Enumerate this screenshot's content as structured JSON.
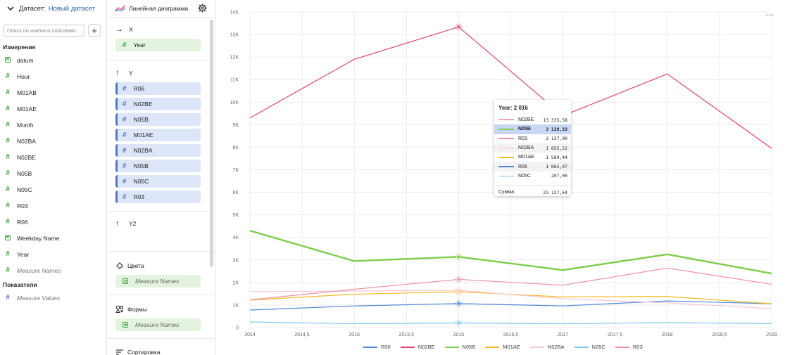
{
  "dataset": {
    "label": "Датасет:",
    "name": "Новый датасет",
    "search_placeholder": "Поиск по имени и описанию",
    "dimensions_title": "Измерения",
    "dimensions": [
      {
        "name": "datum",
        "type": "text-icon"
      },
      {
        "name": "Hour",
        "type": "hash-icon"
      },
      {
        "name": "M01AB",
        "type": "hash-icon"
      },
      {
        "name": "M01AE",
        "type": "hash-icon"
      },
      {
        "name": "Month",
        "type": "hash-icon"
      },
      {
        "name": "N02BA",
        "type": "hash-icon"
      },
      {
        "name": "N02BE",
        "type": "hash-icon"
      },
      {
        "name": "N05B",
        "type": "hash-icon"
      },
      {
        "name": "N05C",
        "type": "hash-icon"
      },
      {
        "name": "R03",
        "type": "hash-icon"
      },
      {
        "name": "R06",
        "type": "hash-icon"
      },
      {
        "name": "Weekday Name",
        "type": "text-icon"
      },
      {
        "name": "Year",
        "type": "hash-icon"
      },
      {
        "name": "Measure Names",
        "type": "hash-icon",
        "italic": true
      }
    ],
    "measures_title": "Показатели",
    "measures": [
      {
        "name": "Measure Values",
        "type": "hash-icon",
        "italic": true
      }
    ]
  },
  "wizard": {
    "viz_name": "Линейная диаграмма",
    "x": {
      "label": "X",
      "fields": [
        "Year"
      ]
    },
    "y": {
      "label": "Y",
      "fields": [
        "R06",
        "N02BE",
        "N05B",
        "M01AE",
        "N02BA",
        "N05B",
        "N05C",
        "R03"
      ]
    },
    "y2": {
      "label": "Y2"
    },
    "colors": {
      "label": "Цвета",
      "field": "Measure Names"
    },
    "shapes": {
      "label": "Формы",
      "field": "Measure Names"
    },
    "sort": {
      "label": "Сортировка"
    }
  },
  "tooltip": {
    "title": "Year: 2 016",
    "rows": [
      {
        "name": "N02BE",
        "value": "13 335,58",
        "color": "#e0446f"
      },
      {
        "name": "N05B",
        "value": "3 138,33",
        "color": "#7ccd48",
        "highlight": true
      },
      {
        "name": "R03",
        "value": "2 137,00",
        "color": "#ee8fa6"
      },
      {
        "name": "N02BA",
        "value": "1 655,22",
        "color": "#f7c6d3",
        "alt": true
      },
      {
        "name": "M01AE",
        "value": "1 589,44",
        "color": "#f6b925"
      },
      {
        "name": "R06",
        "value": "1 065,07",
        "color": "#4f86d6",
        "alt": true
      },
      {
        "name": "N05C",
        "value": "207,00",
        "color": "#7cc5e8"
      }
    ],
    "sum_label": "Сумма",
    "sum_value": "23 127,64"
  },
  "chart_data": {
    "type": "line",
    "x": [
      2014,
      2015,
      2016,
      2017,
      2018,
      2019
    ],
    "x_ticks": [
      "2014",
      "2014,5",
      "2015",
      "2015,5",
      "2016",
      "2016,5",
      "2017",
      "2017,5",
      "2018",
      "2018,5",
      "2019"
    ],
    "y_ticks": [
      "0",
      "1K",
      "2K",
      "3K",
      "4K",
      "5K",
      "6K",
      "7K",
      "8K",
      "9K",
      "10K",
      "11K",
      "12K",
      "13K",
      "14K"
    ],
    "ylim": [
      0,
      14000
    ],
    "xlim": [
      2014,
      2019
    ],
    "grid": true,
    "legend_position": "bottom",
    "series": [
      {
        "name": "R06",
        "color": "#4f86d6",
        "width": 1.2,
        "values": [
          780,
          960,
          1065,
          960,
          1180,
          1060
        ]
      },
      {
        "name": "N02BE",
        "color": "#e0446f",
        "width": 1.2,
        "values": [
          9300,
          11900,
          13335.58,
          9400,
          11250,
          7950
        ]
      },
      {
        "name": "N05B",
        "color": "#7ccd48",
        "width": 2.4,
        "values": [
          4300,
          2950,
          3138.33,
          2550,
          3250,
          2400
        ]
      },
      {
        "name": "M01AE",
        "color": "#f6b925",
        "width": 1.2,
        "values": [
          1220,
          1480,
          1589.44,
          1360,
          1380,
          1060
        ]
      },
      {
        "name": "N02BA",
        "color": "#f7c6d3",
        "width": 1.2,
        "values": [
          1600,
          1620,
          1655.22,
          1280,
          1100,
          840
        ]
      },
      {
        "name": "N05C",
        "color": "#7cc5e8",
        "width": 1.2,
        "values": [
          250,
          170,
          207,
          170,
          220,
          180
        ]
      },
      {
        "name": "R03",
        "color": "#ee8fa6",
        "width": 1.2,
        "values": [
          1230,
          1700,
          2137,
          1880,
          2640,
          1920
        ]
      }
    ],
    "hover_x": 2016
  }
}
